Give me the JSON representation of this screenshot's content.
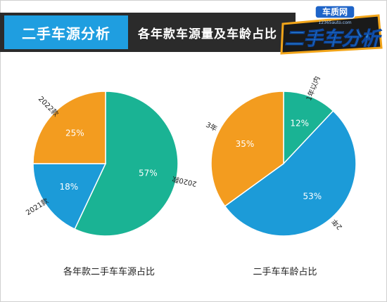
{
  "header": {
    "section_label": "二手车源分析",
    "title": "各年款车源量及车龄占比",
    "logo_brand": "车质网",
    "logo_url": "12365auto.com",
    "logo_text": "二手车分析"
  },
  "chart_data": [
    {
      "type": "pie",
      "title": "各年款二手车车源占比",
      "slices": [
        {
          "label": "2020款",
          "value": 57,
          "value_label": "57%",
          "color": "#1ab394"
        },
        {
          "label": "2021款",
          "value": 18,
          "value_label": "18%",
          "color": "#1c9bd8"
        },
        {
          "label": "2022款",
          "value": 25,
          "value_label": "25%",
          "color": "#f39c1f"
        }
      ]
    },
    {
      "type": "pie",
      "title": "二手车车龄占比",
      "slices": [
        {
          "label": "1年以内",
          "value": 12,
          "value_label": "12%",
          "color": "#1ab394"
        },
        {
          "label": "2年",
          "value": 53,
          "value_label": "53%",
          "color": "#1c9bd8"
        },
        {
          "label": "3年",
          "value": 35,
          "value_label": "35%",
          "color": "#f39c1f"
        }
      ]
    }
  ]
}
